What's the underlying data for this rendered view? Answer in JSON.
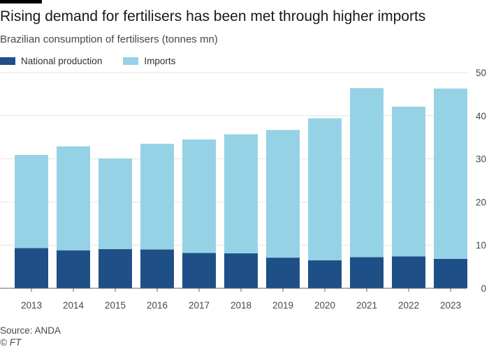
{
  "header": {
    "title": "Rising demand for fertilisers has been met through higher imports",
    "subtitle": "Brazilian consumption of fertilisers (tonnes mn)"
  },
  "footer": {
    "source": "Source: ANDA",
    "credit": "© FT"
  },
  "colors": {
    "national_production": "#1e5087",
    "imports": "#96d2e6",
    "grid": "#e6e2dd",
    "axis": "#66605c"
  },
  "chart_data": {
    "type": "bar",
    "stacked": true,
    "title": "Rising demand for fertilisers has been met through higher imports",
    "subtitle": "Brazilian consumption of fertilisers (tonnes mn)",
    "xlabel": "",
    "ylabel": "",
    "ylim": [
      0,
      50
    ],
    "yticks": [
      0,
      10,
      20,
      30,
      40,
      50
    ],
    "y_axis_side": "right",
    "grid": true,
    "legend_position": "top-left",
    "categories": [
      "2013",
      "2014",
      "2015",
      "2016",
      "2017",
      "2018",
      "2019",
      "2020",
      "2021",
      "2022",
      "2023"
    ],
    "series": [
      {
        "name": "National production",
        "values": [
          9.3,
          8.8,
          9.1,
          9.0,
          8.2,
          8.1,
          7.1,
          6.5,
          7.2,
          7.4,
          6.8
        ]
      },
      {
        "name": "Imports",
        "values": [
          21.6,
          24.1,
          21.0,
          24.5,
          26.3,
          27.6,
          29.6,
          32.9,
          39.2,
          34.7,
          39.5
        ]
      }
    ]
  }
}
